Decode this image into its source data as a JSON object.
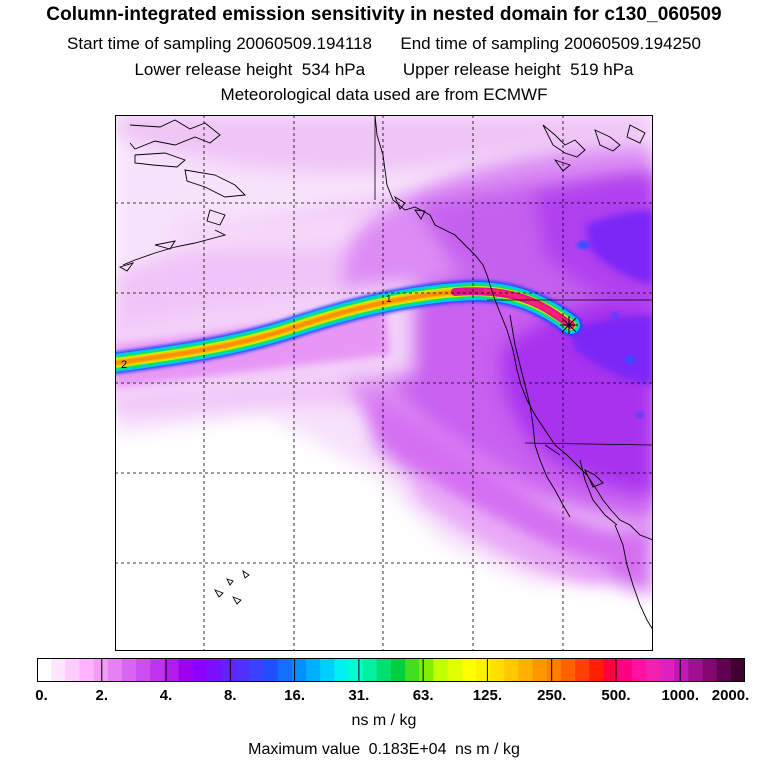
{
  "title": "Column-integrated emission sensitivity in nested domain for c130_060509",
  "start_label": "Start time of sampling",
  "start_value": "20060509.194118",
  "end_label": "End time of sampling",
  "end_value": "20060509.194250",
  "lower_label": "Lower release height",
  "lower_value": "534 hPa",
  "upper_label": "Upper release height",
  "upper_value": "519 hPa",
  "met_label": "Meteorological data used are from ECMWF",
  "map": {
    "contour_label_1": "1",
    "contour_label_2": "2",
    "release_marker": "x-marker"
  },
  "colorbar": {
    "ticks": [
      "0.",
      "2.",
      "4.",
      "8.",
      "16.",
      "31.",
      "63.",
      "125.",
      "250.",
      "500.",
      "1000.",
      "2000."
    ],
    "colors": [
      "#ffffff",
      "#ffe6ff",
      "#ffccff",
      "#ffb3ff",
      "#f59af5",
      "#e680f5",
      "#d966f2",
      "#cc4df0",
      "#c033ee",
      "#b31aee",
      "#a000ee",
      "#8c00ff",
      "#7a10ff",
      "#6620ff",
      "#5030ff",
      "#3c40ff",
      "#2050ff",
      "#1070ff",
      "#0090ff",
      "#00b0ff",
      "#00d0ff",
      "#00f0f0",
      "#00ffd0",
      "#00f0a0",
      "#00e070",
      "#00d040",
      "#40e020",
      "#80f000",
      "#c0ff00",
      "#e0ff00",
      "#ffff00",
      "#fff000",
      "#ffe000",
      "#ffc800",
      "#ffb000",
      "#ff9800",
      "#ff8000",
      "#ff6000",
      "#ff4000",
      "#ff2000",
      "#ff0040",
      "#ff0080",
      "#ff10a0",
      "#f020b0",
      "#e020c0",
      "#c018b0",
      "#a01090",
      "#800870",
      "#600050",
      "#400030"
    ],
    "units": "ns m / kg",
    "max_label": "Maximum value",
    "max_value": "0.183E+04",
    "max_units": "ns m / kg"
  }
}
